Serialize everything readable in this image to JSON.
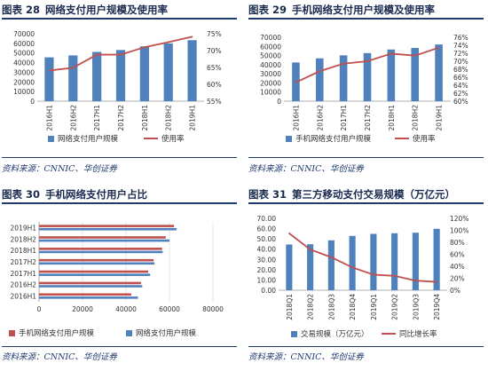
{
  "panels": [
    {
      "fig_label": "图表 28",
      "title": "网络支付用户规模及使用率",
      "source": "资料来源：CNNIC、华创证券"
    },
    {
      "fig_label": "图表 29",
      "title": "手机网络支付用户规模及使用率",
      "source": "资料来源：CNNIC、华创证券"
    },
    {
      "fig_label": "图表 30",
      "title": "手机网络支付用户占比",
      "source": "资料来源：CNNIC、华创证券"
    },
    {
      "fig_label": "图表 31",
      "title": "第三方移动支付交易规模（万亿元）",
      "source": "资料来源：CNNIC、华创证券"
    }
  ],
  "colors": {
    "bar": "#4f81bd",
    "line": "#c0504d",
    "title": "#1a2a4f",
    "rule": "#1f3a6e"
  },
  "chart_data": [
    {
      "type": "bar+line",
      "categories": [
        "2016H1",
        "2016H2",
        "2017H1",
        "2017H2",
        "2018H1",
        "2018H2",
        "2019H1"
      ],
      "series": [
        {
          "name": "网络支付用户规模",
          "kind": "bar",
          "axis": "left",
          "values": [
            45500,
            47500,
            51100,
            53100,
            56900,
            60000,
            63300
          ]
        },
        {
          "name": "使用率",
          "kind": "line",
          "axis": "right",
          "values": [
            64.1,
            64.9,
            68.8,
            68.8,
            71.0,
            72.5,
            74.1
          ]
        }
      ],
      "ylim_left": [
        0,
        70000
      ],
      "yticks_left": [
        0,
        10000,
        20000,
        30000,
        40000,
        50000,
        60000,
        70000
      ],
      "ylim_right": [
        55,
        75
      ],
      "yticks_right": [
        "55%",
        "60%",
        "65%",
        "70%",
        "75%"
      ],
      "yticks_right_values": [
        55,
        60,
        65,
        70,
        75
      ],
      "legend": "bottom"
    },
    {
      "type": "bar+line",
      "categories": [
        "2016H1",
        "2016H2",
        "2017H1",
        "2017H2",
        "2018H1",
        "2018H2",
        "2019H1"
      ],
      "series": [
        {
          "name": "手机网络支付用户规模",
          "kind": "bar",
          "axis": "left",
          "values": [
            42400,
            46900,
            50200,
            52700,
            56600,
            58300,
            62100
          ]
        },
        {
          "name": "使用率",
          "kind": "line",
          "axis": "right",
          "values": [
            64.7,
            67.5,
            69.4,
            70.0,
            71.9,
            71.4,
            73.4
          ]
        }
      ],
      "ylim_left": [
        0,
        70000
      ],
      "yticks_left": [
        0,
        10000,
        20000,
        30000,
        40000,
        50000,
        60000,
        70000
      ],
      "ylim_right": [
        60,
        76
      ],
      "yticks_right": [
        "60%",
        "62%",
        "64%",
        "66%",
        "68%",
        "70%",
        "72%",
        "74%",
        "76%"
      ],
      "yticks_right_values": [
        60,
        62,
        64,
        66,
        68,
        70,
        72,
        74,
        76
      ],
      "legend": "bottom"
    },
    {
      "type": "horizontal-bar",
      "categories": [
        "2019H1",
        "2018H2",
        "2018H1",
        "2017H2",
        "2017H1",
        "2016H2",
        "2016H1"
      ],
      "series": [
        {
          "name": "手机网络支付用户规模",
          "color": "#c0504d",
          "values": [
            62100,
            58300,
            56600,
            52700,
            50200,
            46900,
            42400
          ]
        },
        {
          "name": "网络支付用户规模",
          "color": "#4f81bd",
          "values": [
            63300,
            60000,
            56900,
            53100,
            51100,
            47500,
            45500
          ]
        }
      ],
      "xlim": [
        0,
        80000
      ],
      "xticks": [
        0,
        20000,
        40000,
        60000,
        80000
      ],
      "legend": "bottom"
    },
    {
      "type": "bar+line",
      "categories": [
        "2018Q1",
        "2018Q2",
        "2018Q3",
        "2018Q4",
        "2019Q1",
        "2019Q2",
        "2019Q3",
        "2019Q4"
      ],
      "series": [
        {
          "name": "交易规模（万亿元）",
          "kind": "bar",
          "axis": "left",
          "values": [
            44.5,
            44.8,
            48.6,
            52.9,
            54.9,
            55.5,
            56.0,
            59.8
          ]
        },
        {
          "name": "同比增长率",
          "kind": "line",
          "axis": "right",
          "values": [
            95,
            68,
            55,
            38,
            26,
            24,
            16,
            14
          ]
        }
      ],
      "ylim_left": [
        0,
        70
      ],
      "yticks_left": [
        "0.00",
        "10.00",
        "20.00",
        "30.00",
        "40.00",
        "50.00",
        "60.00",
        "70.00"
      ],
      "yticks_left_values": [
        0,
        10,
        20,
        30,
        40,
        50,
        60,
        70
      ],
      "ylim_right": [
        0,
        120
      ],
      "yticks_right": [
        "0%",
        "20%",
        "40%",
        "60%",
        "80%",
        "100%",
        "120%"
      ],
      "yticks_right_values": [
        0,
        20,
        40,
        60,
        80,
        100,
        120
      ],
      "legend": "bottom"
    }
  ]
}
